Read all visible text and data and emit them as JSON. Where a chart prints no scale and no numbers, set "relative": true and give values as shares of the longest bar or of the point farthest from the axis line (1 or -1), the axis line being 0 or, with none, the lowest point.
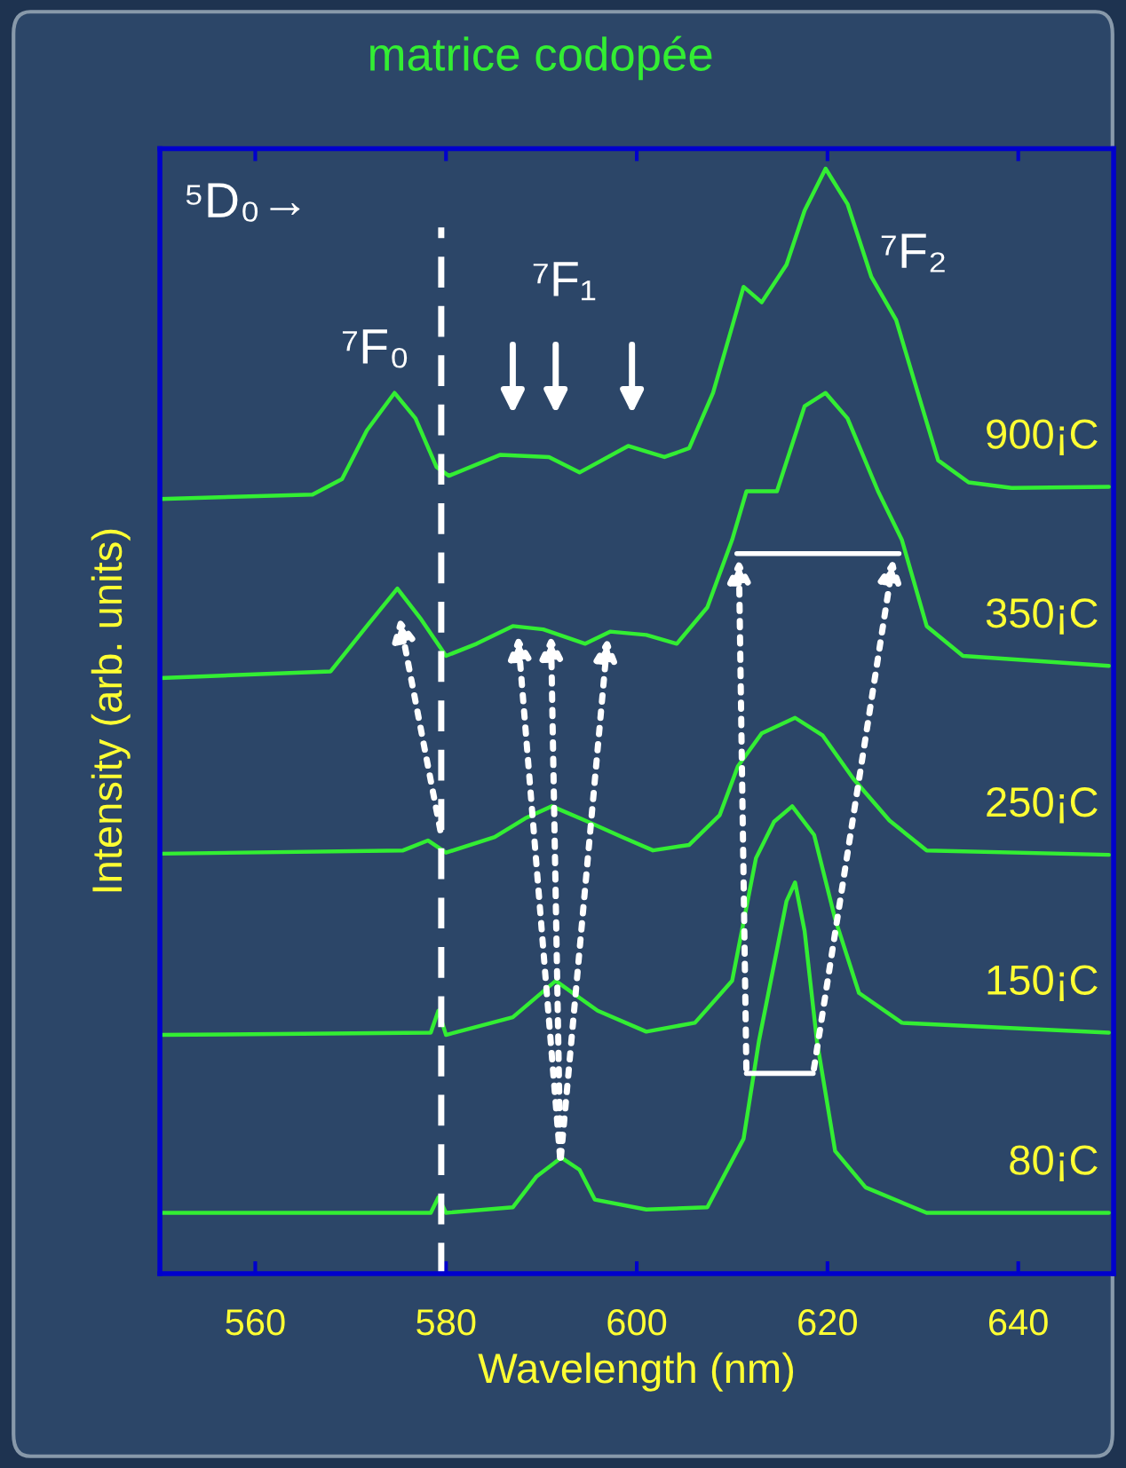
{
  "chart_data": {
    "type": "line",
    "title": "matrice codopée",
    "xlabel": "Wavelength (nm)",
    "ylabel": "Intensity (arb. units)",
    "relative": true,
    "xlim": [
      550,
      650
    ],
    "xticks": [
      560,
      580,
      600,
      620,
      640
    ],
    "tick_labels": "x",
    "grid": false,
    "legend": false,
    "marker": "none",
    "line_style": "solid",
    "annotations": [
      "⁵D₀→",
      "⁷F₀",
      "⁷F₁",
      "⁷F₂"
    ],
    "ref_lines": [
      {
        "axis": "x",
        "value": 579.5,
        "color": "#ffffff",
        "line_style": "dashed"
      }
    ],
    "series": [
      {
        "name": "900¡C",
        "color": "#33ee33",
        "x": [
          550,
          566,
          569.1,
          571.7,
          574.6,
          576.8,
          579,
          580.3,
          585.7,
          590.8,
          594,
          599.1,
          602.9,
          605.5,
          608,
          610,
          611.2,
          613.1,
          615.7,
          617.6,
          619.8,
          622.1,
          624.6,
          627.2,
          629.1,
          631.6,
          634.8,
          639.3,
          649.5
        ],
        "values": [
          0.701,
          0.705,
          0.719,
          0.763,
          0.797,
          0.774,
          0.73,
          0.722,
          0.741,
          0.739,
          0.725,
          0.749,
          0.739,
          0.747,
          0.797,
          0.857,
          0.893,
          0.879,
          0.913,
          0.962,
          1.0,
          0.968,
          0.902,
          0.863,
          0.808,
          0.736,
          0.716,
          0.711,
          0.712
        ]
      },
      {
        "name": "350¡C",
        "color": "#33ee33",
        "x": [
          550,
          567.9,
          571.7,
          574.9,
          577.4,
          580,
          583.2,
          587,
          590.2,
          594.6,
          597.2,
          601,
          604.2,
          607.4,
          610,
          611.5,
          614.7,
          617.6,
          619.8,
          622.1,
          625.3,
          627.8,
          630.4,
          634.2,
          649.5
        ],
        "values": [
          0.539,
          0.545,
          0.586,
          0.62,
          0.592,
          0.559,
          0.57,
          0.586,
          0.583,
          0.57,
          0.581,
          0.578,
          0.57,
          0.603,
          0.664,
          0.708,
          0.708,
          0.785,
          0.797,
          0.774,
          0.708,
          0.664,
          0.586,
          0.559,
          0.55
        ]
      },
      {
        "name": "250¡C",
        "color": "#33ee33",
        "x": [
          550,
          575.5,
          578.1,
          580,
          585.1,
          588.3,
          591.1,
          594.6,
          598.5,
          601.7,
          605.5,
          608.7,
          610.6,
          613.1,
          616.6,
          619.5,
          622.7,
          626.5,
          630.4,
          649.5
        ],
        "values": [
          0.38,
          0.383,
          0.392,
          0.381,
          0.395,
          0.412,
          0.423,
          0.41,
          0.395,
          0.383,
          0.388,
          0.415,
          0.459,
          0.489,
          0.503,
          0.487,
          0.448,
          0.41,
          0.383,
          0.379
        ]
      },
      {
        "name": "150¡C",
        "color": "#33ee33",
        "x": [
          550,
          578.4,
          579.2,
          580,
          587,
          591.5,
          595.9,
          601,
          606.1,
          610,
          612.5,
          614.4,
          616.3,
          618.6,
          620.8,
          623.3,
          627.8,
          649.5
        ],
        "values": [
          0.216,
          0.218,
          0.238,
          0.216,
          0.232,
          0.265,
          0.238,
          0.219,
          0.227,
          0.265,
          0.376,
          0.409,
          0.423,
          0.397,
          0.321,
          0.254,
          0.227,
          0.218
        ]
      },
      {
        "name": "80¡C",
        "color": "#33ee33",
        "x": [
          550,
          578.4,
          579.2,
          580,
          587,
          589.5,
          592.1,
          594,
          595.6,
          601,
          607.4,
          611.2,
          612.8,
          614.7,
          615.7,
          616.6,
          617.6,
          618.9,
          620.8,
          624,
          630.4,
          649.5
        ],
        "values": [
          0.055,
          0.055,
          0.069,
          0.055,
          0.06,
          0.088,
          0.105,
          0.094,
          0.067,
          0.058,
          0.06,
          0.122,
          0.21,
          0.293,
          0.337,
          0.354,
          0.31,
          0.21,
          0.111,
          0.078,
          0.055,
          0.055
        ]
      }
    ]
  }
}
